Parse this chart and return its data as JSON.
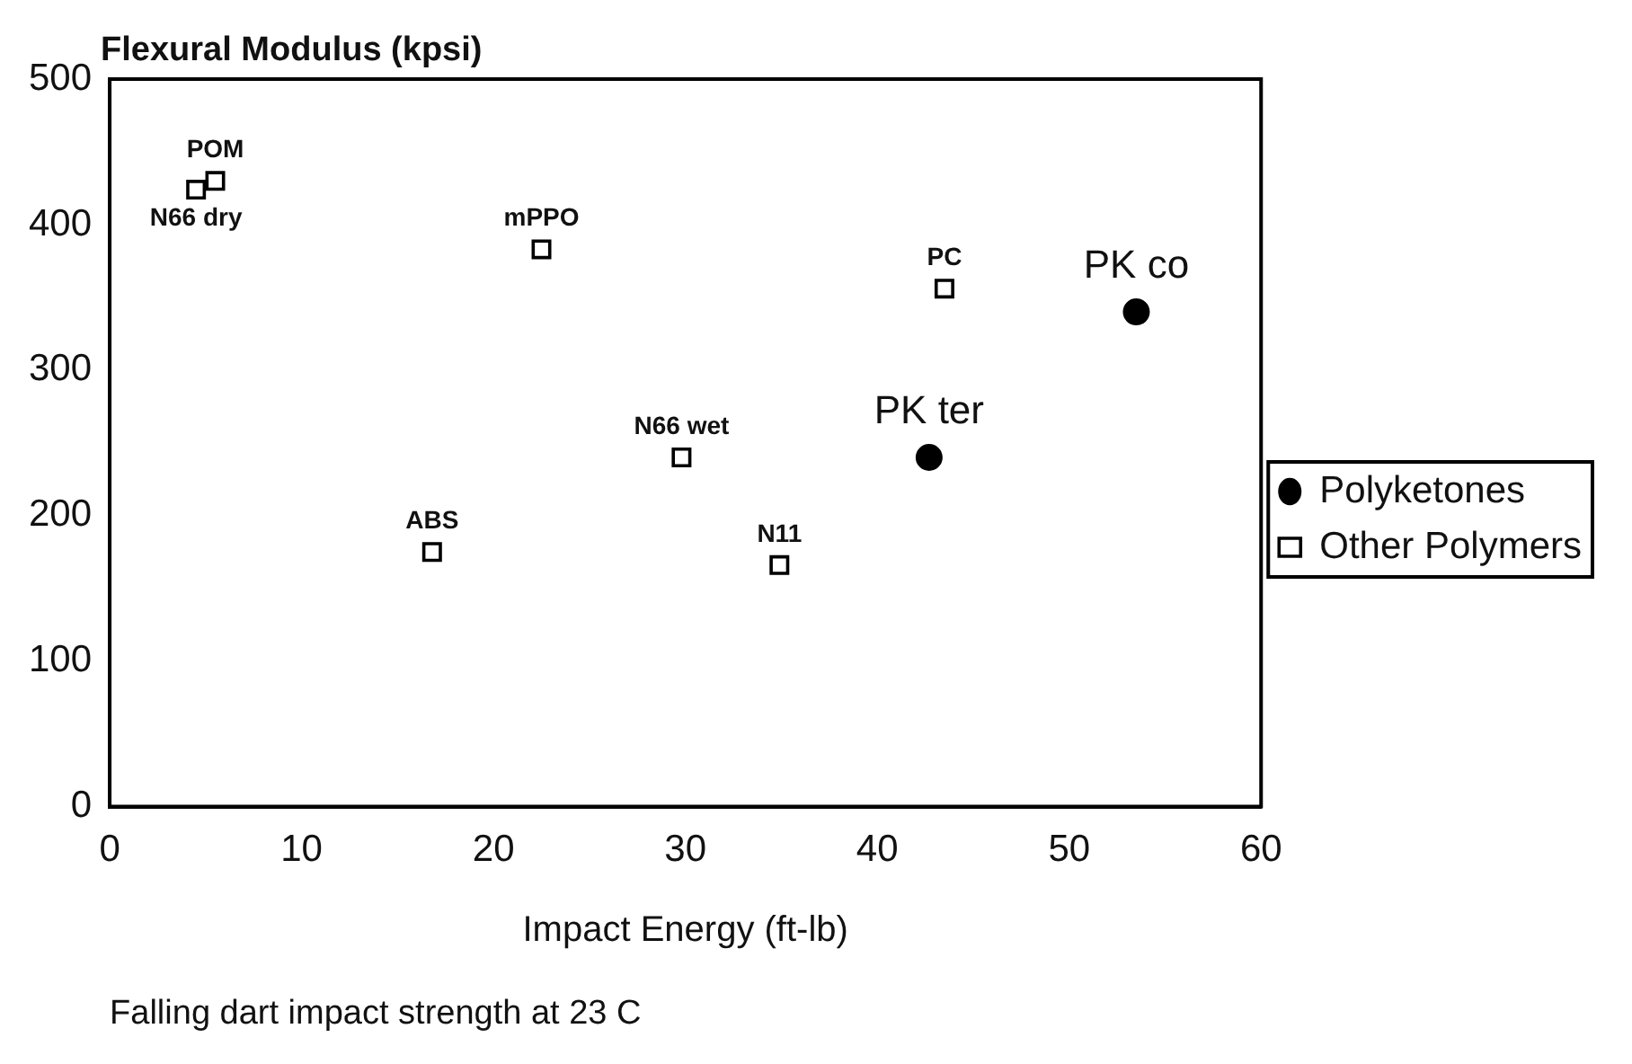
{
  "chart_data": {
    "type": "scatter",
    "ylabel": "Flexural Modulus (kpsi)",
    "xlabel": "Impact Energy (ft-lb)",
    "xlim": [
      0,
      60
    ],
    "xticks": [
      0,
      10,
      20,
      30,
      40,
      50,
      60
    ],
    "ylim": [
      0,
      500
    ],
    "yticks": [
      0,
      100,
      200,
      300,
      400,
      500
    ],
    "grid": false,
    "legend": "right",
    "series": [
      {
        "name": "Polyketones",
        "color": "#000000",
        "marker": "circle",
        "x": [
          42.7,
          53.5
        ],
        "values": [
          240,
          340
        ]
      },
      {
        "name": "Other Polymers",
        "color": "#000000",
        "marker": "square",
        "x": [
          4.5,
          5.5,
          22.5,
          16.8,
          34.9,
          29.8,
          43.5
        ],
        "values": [
          424,
          430,
          383,
          175,
          166,
          240,
          356
        ]
      }
    ],
    "annotations": [
      {
        "text": "N66 dry",
        "x": 4.5,
        "y": 424
      },
      {
        "text": "POM",
        "x": 5.5,
        "y": 430
      },
      {
        "text": "mPPO",
        "x": 22.5,
        "y": 383
      },
      {
        "text": "ABS",
        "x": 16.8,
        "y": 175
      },
      {
        "text": "N11",
        "x": 34.9,
        "y": 166
      },
      {
        "text": "N66 wet",
        "x": 29.8,
        "y": 240
      },
      {
        "text": "PC",
        "x": 43.5,
        "y": 356
      },
      {
        "text": "PK ter",
        "x": 42.7,
        "y": 240
      },
      {
        "text": "PK co",
        "x": 53.5,
        "y": 340
      },
      "Falling dart impact strength at 23 C"
    ]
  }
}
